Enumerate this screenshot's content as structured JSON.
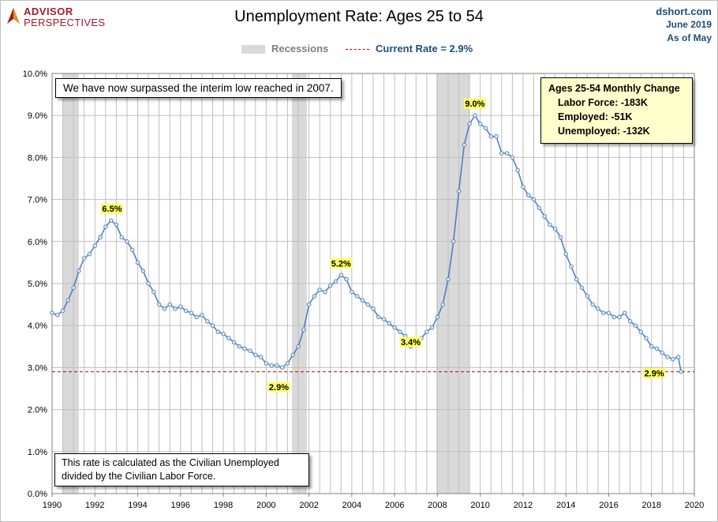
{
  "logo": {
    "line1": "ADVISOR",
    "line2": "PERSPECTIVES"
  },
  "title": "Unemployment Rate: Ages 25 to 54",
  "source": {
    "site": "dshort.com",
    "date": "June 2019",
    "as_of": "As of May"
  },
  "legend": {
    "recessions": "Recessions",
    "current": "Current Rate = 2.9%"
  },
  "notes": {
    "top": "We have now surpassed the interim low reached in 2007.",
    "bottom": "This rate is calculated as the Civilian Unemployed divided by the Civilian Labor Force."
  },
  "change_box": {
    "heading": "Ages 25-54  Monthly Change",
    "rows": [
      "Labor Force:  -183K",
      "Employed:  -51K",
      "Unemployed:  -132K"
    ]
  },
  "colors": {
    "line": "#4f81bd",
    "recession": "#d9d9d9",
    "current_line": "#c00000",
    "label_bg": "#ffff66",
    "box_bg": "#ffffcc"
  },
  "chart_data": {
    "type": "line",
    "title": "Unemployment Rate: Ages 25 to 54",
    "xlim": [
      1990,
      2020
    ],
    "ylim": [
      0,
      10
    ],
    "x_ticks": [
      "1990",
      "1992",
      "1994",
      "1996",
      "1998",
      "2000",
      "2002",
      "2004",
      "2006",
      "2008",
      "2010",
      "2012",
      "2014",
      "2016",
      "2018",
      "2020"
    ],
    "y_ticks": [
      "0.0%",
      "1.0%",
      "2.0%",
      "3.0%",
      "4.0%",
      "5.0%",
      "6.0%",
      "7.0%",
      "8.0%",
      "9.0%",
      "10.0%"
    ],
    "grid": true,
    "recessions": [
      [
        1990.5,
        1991.25
      ],
      [
        2001.2,
        2001.9
      ],
      [
        2007.95,
        2009.5
      ]
    ],
    "current_rate": 2.9,
    "series": [
      {
        "points": [
          [
            1990.0,
            4.3
          ],
          [
            1990.25,
            4.25
          ],
          [
            1990.5,
            4.35
          ],
          [
            1990.75,
            4.6
          ],
          [
            1991.0,
            4.9
          ],
          [
            1991.25,
            5.3
          ],
          [
            1991.5,
            5.6
          ],
          [
            1991.75,
            5.7
          ],
          [
            1992.0,
            5.9
          ],
          [
            1992.25,
            6.1
          ],
          [
            1992.5,
            6.35
          ],
          [
            1992.75,
            6.5
          ],
          [
            1993.0,
            6.4
          ],
          [
            1993.25,
            6.1
          ],
          [
            1993.5,
            6.0
          ],
          [
            1993.75,
            5.8
          ],
          [
            1994.0,
            5.5
          ],
          [
            1994.25,
            5.3
          ],
          [
            1994.5,
            5.0
          ],
          [
            1994.75,
            4.8
          ],
          [
            1995.0,
            4.5
          ],
          [
            1995.25,
            4.4
          ],
          [
            1995.5,
            4.5
          ],
          [
            1995.75,
            4.4
          ],
          [
            1996.0,
            4.45
          ],
          [
            1996.25,
            4.35
          ],
          [
            1996.5,
            4.3
          ],
          [
            1996.75,
            4.2
          ],
          [
            1997.0,
            4.25
          ],
          [
            1997.25,
            4.1
          ],
          [
            1997.5,
            4.0
          ],
          [
            1997.75,
            3.85
          ],
          [
            1998.0,
            3.8
          ],
          [
            1998.25,
            3.7
          ],
          [
            1998.5,
            3.6
          ],
          [
            1998.75,
            3.5
          ],
          [
            1999.0,
            3.45
          ],
          [
            1999.25,
            3.4
          ],
          [
            1999.5,
            3.3
          ],
          [
            1999.75,
            3.25
          ],
          [
            2000.0,
            3.1
          ],
          [
            2000.25,
            3.05
          ],
          [
            2000.5,
            3.05
          ],
          [
            2000.75,
            3.0
          ],
          [
            2001.0,
            3.1
          ],
          [
            2001.25,
            3.3
          ],
          [
            2001.5,
            3.5
          ],
          [
            2001.75,
            3.9
          ],
          [
            2002.0,
            4.5
          ],
          [
            2002.25,
            4.7
          ],
          [
            2002.5,
            4.85
          ],
          [
            2002.75,
            4.8
          ],
          [
            2003.0,
            4.95
          ],
          [
            2003.25,
            5.05
          ],
          [
            2003.5,
            5.2
          ],
          [
            2003.75,
            5.1
          ],
          [
            2004.0,
            4.8
          ],
          [
            2004.25,
            4.7
          ],
          [
            2004.5,
            4.6
          ],
          [
            2004.75,
            4.5
          ],
          [
            2005.0,
            4.4
          ],
          [
            2005.25,
            4.2
          ],
          [
            2005.5,
            4.15
          ],
          [
            2005.75,
            4.05
          ],
          [
            2006.0,
            3.95
          ],
          [
            2006.25,
            3.85
          ],
          [
            2006.5,
            3.75
          ],
          [
            2006.75,
            3.5
          ],
          [
            2007.0,
            3.6
          ],
          [
            2007.25,
            3.7
          ],
          [
            2007.5,
            3.85
          ],
          [
            2007.75,
            3.95
          ],
          [
            2008.0,
            4.2
          ],
          [
            2008.25,
            4.5
          ],
          [
            2008.5,
            5.1
          ],
          [
            2008.75,
            6.0
          ],
          [
            2009.0,
            7.2
          ],
          [
            2009.25,
            8.3
          ],
          [
            2009.5,
            8.8
          ],
          [
            2009.75,
            9.0
          ],
          [
            2010.0,
            8.8
          ],
          [
            2010.25,
            8.7
          ],
          [
            2010.5,
            8.5
          ],
          [
            2010.75,
            8.5
          ],
          [
            2011.0,
            8.1
          ],
          [
            2011.25,
            8.1
          ],
          [
            2011.5,
            8.0
          ],
          [
            2011.75,
            7.7
          ],
          [
            2012.0,
            7.3
          ],
          [
            2012.25,
            7.1
          ],
          [
            2012.5,
            7.0
          ],
          [
            2012.75,
            6.8
          ],
          [
            2013.0,
            6.6
          ],
          [
            2013.25,
            6.4
          ],
          [
            2013.5,
            6.3
          ],
          [
            2013.75,
            6.1
          ],
          [
            2014.0,
            5.7
          ],
          [
            2014.25,
            5.4
          ],
          [
            2014.5,
            5.1
          ],
          [
            2014.75,
            4.9
          ],
          [
            2015.0,
            4.7
          ],
          [
            2015.25,
            4.5
          ],
          [
            2015.5,
            4.4
          ],
          [
            2015.75,
            4.3
          ],
          [
            2016.0,
            4.3
          ],
          [
            2016.25,
            4.2
          ],
          [
            2016.5,
            4.2
          ],
          [
            2016.75,
            4.3
          ],
          [
            2017.0,
            4.1
          ],
          [
            2017.25,
            4.0
          ],
          [
            2017.5,
            3.85
          ],
          [
            2017.75,
            3.7
          ],
          [
            2018.0,
            3.5
          ],
          [
            2018.25,
            3.45
          ],
          [
            2018.5,
            3.35
          ],
          [
            2018.75,
            3.25
          ],
          [
            2019.0,
            3.2
          ],
          [
            2019.25,
            3.25
          ],
          [
            2019.38,
            2.9
          ]
        ]
      }
    ],
    "annotations": [
      {
        "label": "6.5%",
        "x": 1992.8,
        "y": 6.5
      },
      {
        "label": "5.2%",
        "x": 2003.5,
        "y": 5.2
      },
      {
        "label": "9.0%",
        "x": 2009.75,
        "y": 9.0
      },
      {
        "label": "2.9%",
        "x": 2000.3,
        "y": 2.95
      },
      {
        "label": "3.4%",
        "x": 2006.75,
        "y": 3.4
      },
      {
        "label": "2.9%",
        "x": 2019.38,
        "y": 2.9
      }
    ]
  }
}
